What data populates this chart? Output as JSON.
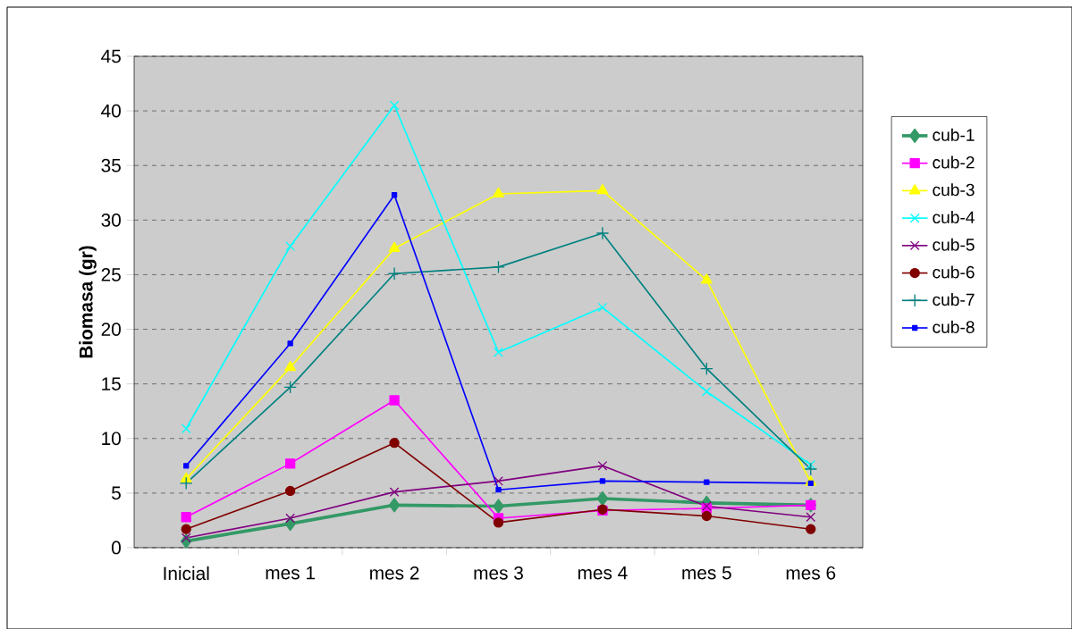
{
  "chart_data": {
    "type": "line",
    "ylabel": "Biomasa (gr)",
    "categories": [
      "Inicial",
      "mes 1",
      "mes 2",
      "mes 3",
      "mes 4",
      "mes 5",
      "mes 6"
    ],
    "ylim": [
      0,
      45
    ],
    "yticks": [
      0,
      5,
      10,
      15,
      20,
      25,
      30,
      35,
      40,
      45
    ],
    "grid": "y",
    "legend": "right",
    "series": [
      {
        "name": "cub-1",
        "color": "#339966",
        "marker": "diamond",
        "values": [
          0.6,
          2.2,
          3.9,
          3.8,
          4.5,
          4.1,
          3.9
        ]
      },
      {
        "name": "cub-2",
        "color": "#ff00ff",
        "marker": "square",
        "values": [
          2.8,
          7.7,
          13.5,
          2.7,
          3.4,
          3.6,
          3.9
        ]
      },
      {
        "name": "cub-3",
        "color": "#ffff00",
        "marker": "triangle",
        "values": [
          6.3,
          16.5,
          27.4,
          32.4,
          32.7,
          24.5,
          6.0
        ]
      },
      {
        "name": "cub-4",
        "color": "#00ffff",
        "marker": "cross",
        "values": [
          10.9,
          27.6,
          40.5,
          17.9,
          22.0,
          14.3,
          7.6
        ]
      },
      {
        "name": "cub-5",
        "color": "#800080",
        "marker": "cross",
        "values": [
          0.9,
          2.7,
          5.1,
          6.1,
          7.5,
          3.8,
          2.8
        ]
      },
      {
        "name": "cub-6",
        "color": "#800000",
        "marker": "circle",
        "values": [
          1.7,
          5.2,
          9.6,
          2.3,
          3.5,
          2.9,
          1.7
        ]
      },
      {
        "name": "cub-7",
        "color": "#008080",
        "marker": "plus",
        "values": [
          5.9,
          14.7,
          25.1,
          25.7,
          28.8,
          16.4,
          7.2
        ]
      },
      {
        "name": "cub-8",
        "color": "#0000ff",
        "marker": "square",
        "values": [
          7.5,
          18.7,
          32.3,
          5.3,
          6.1,
          6.0,
          5.9
        ]
      }
    ]
  }
}
